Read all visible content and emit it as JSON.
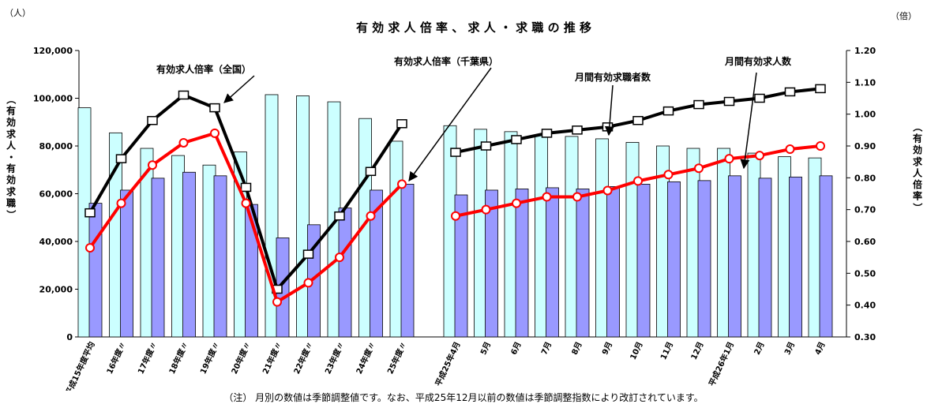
{
  "chart_data": {
    "type": "bar+line",
    "title": "有 効 求 人 倍 率 、 求 人 ・ 求 職 の 推 移",
    "left_unit": "（人）",
    "right_unit": "（倍）",
    "ylabel_left": "（有効求人・有効求職）",
    "ylabel_right": "（有効求人倍率）",
    "ylim_left": [
      0,
      120000
    ],
    "ylim_right": [
      0.3,
      1.2
    ],
    "left_ticks": [
      "0",
      "20,000",
      "40,000",
      "60,000",
      "80,000",
      "100,000",
      "120,000"
    ],
    "right_ticks": [
      "0.30",
      "0.40",
      "0.50",
      "0.60",
      "0.70",
      "0.80",
      "0.90",
      "1.00",
      "1.10",
      "1.20"
    ],
    "categories_annual": [
      "平成15年度平均",
      "16年度〃",
      "17年度〃",
      "18年度〃",
      "19年度〃",
      "20年度〃",
      "21年度〃",
      "22年度〃",
      "23年度〃",
      "24年度〃",
      "25年度〃"
    ],
    "categories_monthly": [
      "平成25年4月",
      "5月",
      "6月",
      "7月",
      "8月",
      "9月",
      "10月",
      "11月",
      "12月",
      "平成26年1月",
      "2月",
      "3月",
      "4月"
    ],
    "series": [
      {
        "name": "月間有効求職者数",
        "kind": "bar",
        "color": "#ccffff",
        "annual": [
          96000,
          85500,
          79000,
          76000,
          72000,
          77500,
          101500,
          101000,
          98500,
          91500,
          82000
        ],
        "monthly": [
          88500,
          87000,
          86000,
          84500,
          84000,
          83000,
          81500,
          80000,
          79000,
          79000,
          77000,
          75500,
          75000
        ]
      },
      {
        "name": "月間有効求人数",
        "kind": "bar",
        "color": "#9999ff",
        "annual": [
          56000,
          61500,
          66500,
          69000,
          67500,
          55500,
          41500,
          47000,
          54000,
          61500,
          64000
        ],
        "monthly": [
          59500,
          61500,
          62000,
          62500,
          62000,
          63000,
          64000,
          65000,
          65500,
          67500,
          66500,
          67000,
          67500
        ]
      },
      {
        "name": "有効求人倍率（全国）",
        "kind": "line",
        "color": "#000000",
        "marker": "square",
        "annual": [
          0.69,
          0.86,
          0.98,
          1.06,
          1.02,
          0.77,
          0.45,
          0.56,
          0.68,
          0.82,
          0.97
        ],
        "monthly": [
          0.88,
          0.9,
          0.92,
          0.94,
          0.95,
          0.96,
          0.98,
          1.01,
          1.03,
          1.04,
          1.05,
          1.07,
          1.08
        ]
      },
      {
        "name": "有効求人倍率（千葉県）",
        "kind": "line",
        "color": "#ff0000",
        "marker": "circle",
        "annual": [
          0.58,
          0.72,
          0.84,
          0.91,
          0.94,
          0.72,
          0.41,
          0.47,
          0.55,
          0.68,
          0.78
        ],
        "monthly": [
          0.68,
          0.7,
          0.72,
          0.74,
          0.74,
          0.76,
          0.79,
          0.81,
          0.83,
          0.86,
          0.87,
          0.89,
          0.9
        ]
      }
    ],
    "annotations": [
      "有効求人倍率（全国）",
      "有効求人倍率（千葉県）",
      "月間有効求職者数",
      "月間有効求人数"
    ],
    "grid": false,
    "legend": "annotations"
  },
  "note": "（注） 月別の数値は季節調整値です。なお、平成25年12月以前の数値は季節調整指数により改訂されています。"
}
